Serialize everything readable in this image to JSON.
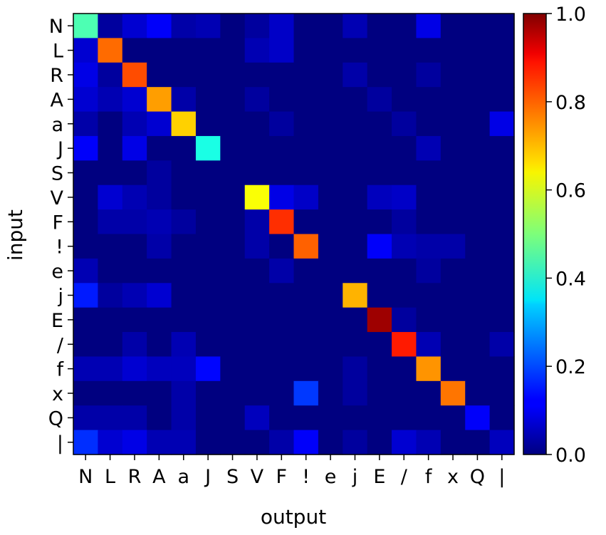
{
  "chart_data": {
    "type": "heatmap",
    "xlabel": "output",
    "ylabel": "input",
    "x_categories": [
      "N",
      "L",
      "R",
      "A",
      "a",
      "J",
      "S",
      "V",
      "F",
      "!",
      "e",
      "j",
      "E",
      "/",
      "f",
      "x",
      "Q",
      "|"
    ],
    "y_categories": [
      "N",
      "L",
      "R",
      "A",
      "a",
      "J",
      "S",
      "V",
      "F",
      "!",
      "e",
      "j",
      "E",
      "/",
      "f",
      "x",
      "Q",
      "|"
    ],
    "colormap": "jet",
    "value_range": [
      0.0,
      1.0
    ],
    "colorbar_ticks": [
      "0.0",
      "0.2",
      "0.4",
      "0.6",
      "0.8",
      "1.0"
    ],
    "values": [
      [
        0.45,
        0.03,
        0.08,
        0.12,
        0.04,
        0.05,
        0.0,
        0.03,
        0.07,
        0.0,
        0.0,
        0.05,
        0.0,
        0.0,
        0.1,
        0.0,
        0.0,
        0.0
      ],
      [
        0.08,
        0.77,
        0.0,
        0.0,
        0.0,
        0.0,
        0.0,
        0.05,
        0.07,
        0.0,
        0.0,
        0.0,
        0.0,
        0.0,
        0.0,
        0.0,
        0.0,
        0.0
      ],
      [
        0.1,
        0.03,
        0.8,
        0.0,
        0.0,
        0.0,
        0.0,
        0.0,
        0.0,
        0.0,
        0.0,
        0.04,
        0.0,
        0.0,
        0.03,
        0.0,
        0.0,
        0.0
      ],
      [
        0.08,
        0.05,
        0.08,
        0.72,
        0.04,
        0.0,
        0.0,
        0.03,
        0.0,
        0.0,
        0.0,
        0.0,
        0.03,
        0.0,
        0.0,
        0.0,
        0.0,
        0.0
      ],
      [
        0.04,
        0.0,
        0.05,
        0.08,
        0.67,
        0.0,
        0.0,
        0.0,
        0.03,
        0.0,
        0.0,
        0.0,
        0.0,
        0.03,
        0.0,
        0.0,
        0.0,
        0.1
      ],
      [
        0.12,
        0.0,
        0.1,
        0.0,
        0.0,
        0.4,
        0.0,
        0.0,
        0.0,
        0.0,
        0.0,
        0.0,
        0.0,
        0.0,
        0.05,
        0.0,
        0.0,
        0.0
      ],
      [
        0.0,
        0.0,
        0.0,
        0.03,
        0.0,
        0.0,
        0.0,
        0.0,
        0.0,
        0.0,
        0.0,
        0.0,
        0.0,
        0.0,
        0.0,
        0.0,
        0.0,
        0.0
      ],
      [
        0.0,
        0.08,
        0.05,
        0.03,
        0.0,
        0.0,
        0.0,
        0.62,
        0.1,
        0.07,
        0.0,
        0.0,
        0.06,
        0.07,
        0.0,
        0.0,
        0.0,
        0.0
      ],
      [
        0.0,
        0.04,
        0.04,
        0.05,
        0.03,
        0.0,
        0.0,
        0.04,
        0.83,
        0.0,
        0.0,
        0.0,
        0.0,
        0.03,
        0.0,
        0.0,
        0.0,
        0.0
      ],
      [
        0.0,
        0.0,
        0.0,
        0.04,
        0.0,
        0.0,
        0.0,
        0.04,
        0.0,
        0.78,
        0.0,
        0.0,
        0.12,
        0.05,
        0.04,
        0.04,
        0.0,
        0.0
      ],
      [
        0.05,
        0.0,
        0.0,
        0.0,
        0.0,
        0.0,
        0.0,
        0.0,
        0.04,
        0.0,
        0.0,
        0.0,
        0.0,
        0.0,
        0.03,
        0.0,
        0.0,
        0.0
      ],
      [
        0.15,
        0.03,
        0.05,
        0.08,
        0.0,
        0.0,
        0.0,
        0.0,
        0.0,
        0.0,
        0.0,
        0.7,
        0.0,
        0.0,
        0.0,
        0.0,
        0.0,
        0.0
      ],
      [
        0.0,
        0.0,
        0.0,
        0.0,
        0.0,
        0.0,
        0.0,
        0.0,
        0.0,
        0.0,
        0.0,
        0.0,
        0.97,
        0.03,
        0.0,
        0.0,
        0.0,
        0.0
      ],
      [
        0.0,
        0.0,
        0.04,
        0.0,
        0.05,
        0.0,
        0.0,
        0.0,
        0.0,
        0.0,
        0.0,
        0.0,
        0.0,
        0.85,
        0.05,
        0.0,
        0.0,
        0.04
      ],
      [
        0.05,
        0.05,
        0.08,
        0.06,
        0.06,
        0.13,
        0.0,
        0.0,
        0.0,
        0.0,
        0.0,
        0.03,
        0.0,
        0.0,
        0.73,
        0.0,
        0.0,
        0.0
      ],
      [
        0.0,
        0.0,
        0.0,
        0.0,
        0.04,
        0.0,
        0.0,
        0.0,
        0.0,
        0.18,
        0.0,
        0.03,
        0.0,
        0.0,
        0.0,
        0.76,
        0.0,
        0.0
      ],
      [
        0.04,
        0.04,
        0.04,
        0.0,
        0.04,
        0.0,
        0.0,
        0.06,
        0.0,
        0.0,
        0.0,
        0.0,
        0.0,
        0.0,
        0.0,
        0.0,
        0.12,
        0.0
      ],
      [
        0.17,
        0.08,
        0.1,
        0.05,
        0.05,
        0.0,
        0.0,
        0.0,
        0.04,
        0.12,
        0.0,
        0.03,
        0.0,
        0.08,
        0.05,
        0.0,
        0.0,
        0.06
      ]
    ]
  }
}
